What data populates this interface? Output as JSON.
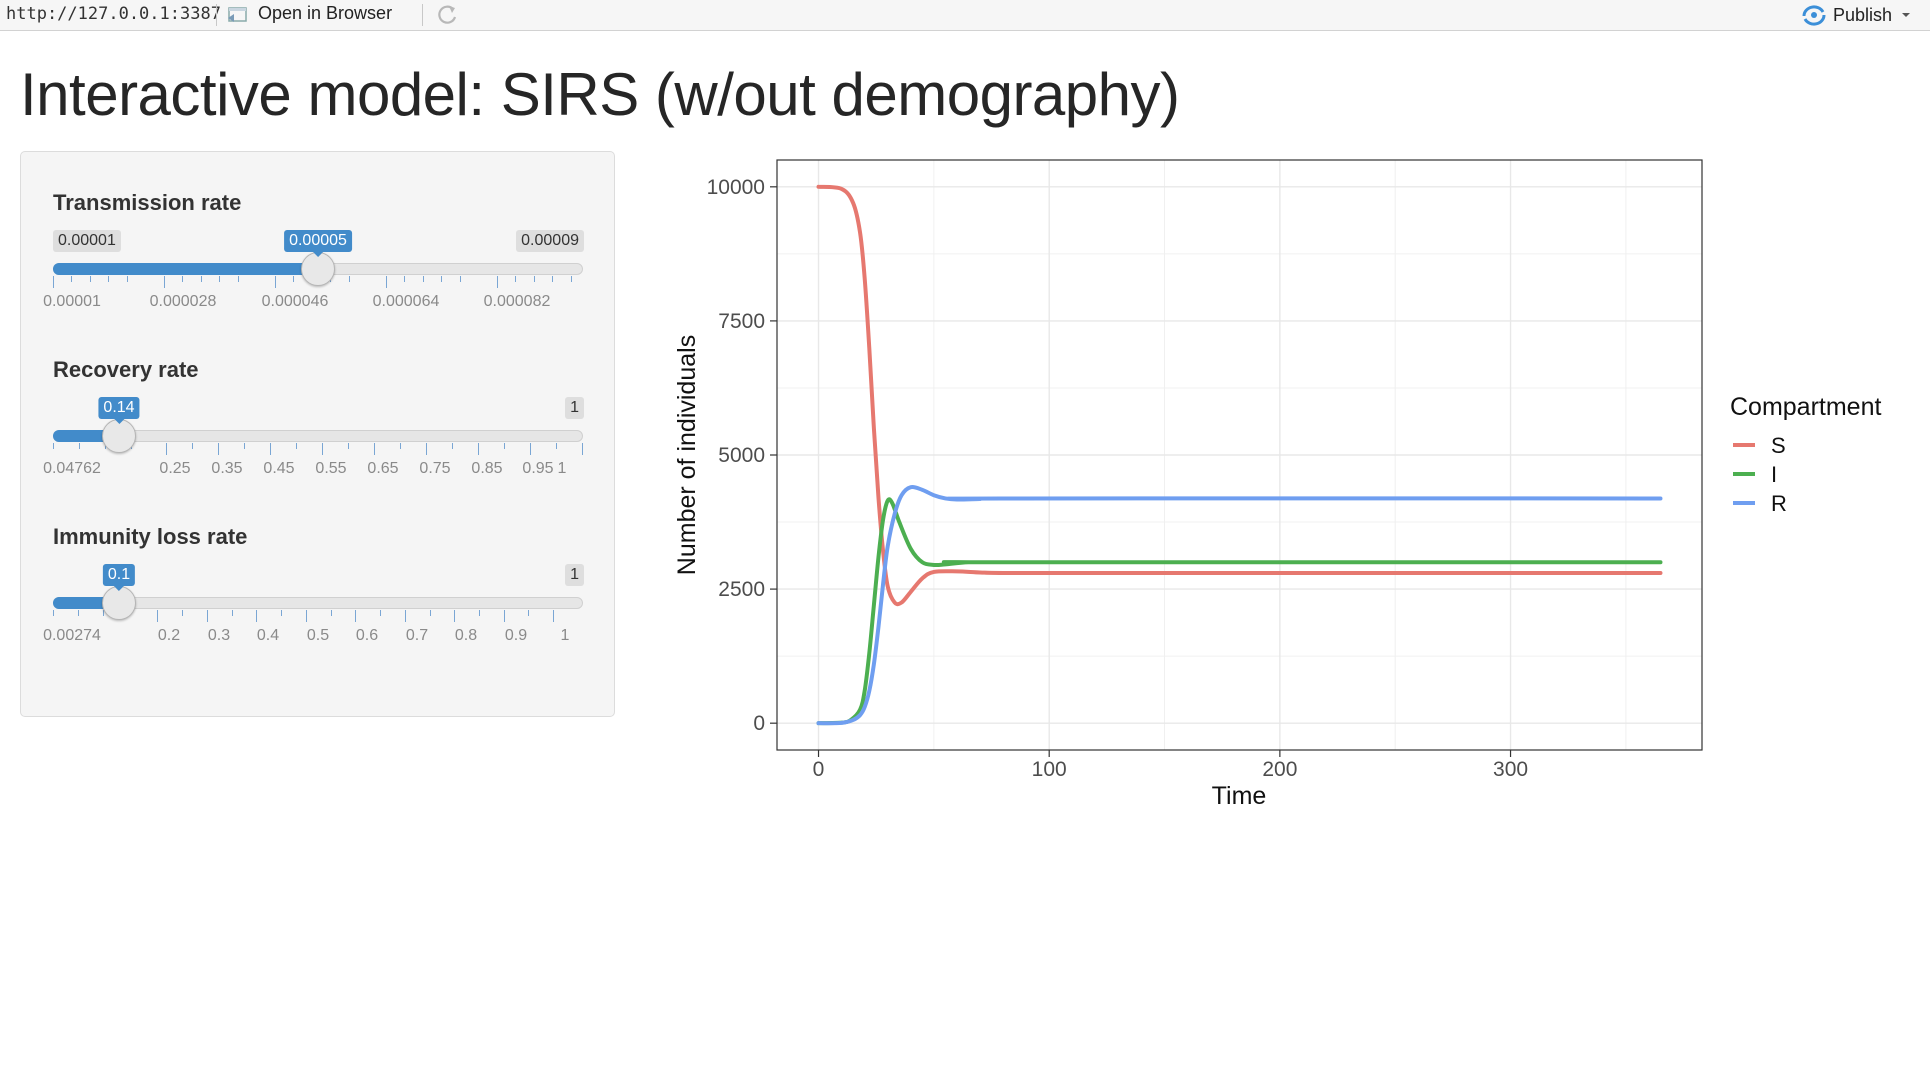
{
  "toolbar": {
    "url": "http://127.0.0.1:3387",
    "open_in_browser": "Open in Browser",
    "publish": "Publish"
  },
  "page_title": "Interactive model: SIRS (w/out demography)",
  "sliders": [
    {
      "label": "Transmission rate",
      "min": 1e-05,
      "max": 9e-05,
      "value": 5e-05,
      "min_label": "0.00001",
      "max_label": "0.00009",
      "value_label": "0.00005",
      "tick_labels": [
        "0.00001",
        "0.000028",
        "0.000046",
        "0.000064",
        "0.000082"
      ]
    },
    {
      "label": "Recovery rate",
      "min": 0.04762,
      "max": 1,
      "value": 0.14,
      "min_label": "",
      "max_label": "1",
      "value_label": "0.14",
      "tick_labels": [
        "0.04762",
        "0.25",
        "0.35",
        "0.45",
        "0.55",
        "0.65",
        "0.75",
        "0.85",
        "0.95",
        "1"
      ]
    },
    {
      "label": "Immunity loss rate",
      "min": 0.00274,
      "max": 1,
      "value": 0.1,
      "min_label": "",
      "max_label": "1",
      "value_label": "0.1",
      "tick_labels": [
        "0.00274",
        "0.2",
        "0.3",
        "0.4",
        "0.5",
        "0.6",
        "0.7",
        "0.8",
        "0.9",
        "1"
      ]
    }
  ],
  "colors": {
    "S": "#e6786f",
    "I": "#4caf50",
    "R": "#6f9ef0",
    "accent": "#428bca"
  },
  "chart_data": {
    "type": "line",
    "title": "",
    "xlabel": "Time",
    "ylabel": "Number of individuals",
    "xlim": [
      -18,
      383
    ],
    "ylim": [
      -500,
      10500
    ],
    "x_ticks": [
      "0",
      "100",
      "200",
      "300"
    ],
    "y_ticks": [
      "0",
      "2500",
      "5000",
      "7500",
      "10000"
    ],
    "legend_title": "Compartment",
    "legend_position": "right",
    "grid": true,
    "series": [
      {
        "name": "S",
        "points": [
          [
            0,
            10000
          ],
          [
            10,
            9960
          ],
          [
            15,
            9700
          ],
          [
            18,
            9150
          ],
          [
            20,
            8300
          ],
          [
            22,
            7000
          ],
          [
            24,
            5500
          ],
          [
            26,
            4200
          ],
          [
            28,
            3200
          ],
          [
            30,
            2550
          ],
          [
            33,
            2250
          ],
          [
            36,
            2250
          ],
          [
            40,
            2450
          ],
          [
            45,
            2700
          ],
          [
            50,
            2820
          ],
          [
            60,
            2830
          ],
          [
            70,
            2810
          ],
          [
            80,
            2800
          ],
          [
            120,
            2800
          ],
          [
            365,
            2800
          ]
        ]
      },
      {
        "name": "I",
        "points": [
          [
            0,
            0
          ],
          [
            10,
            10
          ],
          [
            14,
            60
          ],
          [
            18,
            250
          ],
          [
            20,
            600
          ],
          [
            22,
            1300
          ],
          [
            24,
            2200
          ],
          [
            26,
            3100
          ],
          [
            28,
            3800
          ],
          [
            30,
            4150
          ],
          [
            32,
            4100
          ],
          [
            35,
            3750
          ],
          [
            40,
            3250
          ],
          [
            45,
            3000
          ],
          [
            50,
            2950
          ],
          [
            55,
            2960
          ],
          [
            65,
            3000
          ],
          [
            80,
            3000
          ],
          [
            365,
            3000
          ]
        ]
      },
      {
        "name": "R",
        "points": [
          [
            0,
            0
          ],
          [
            10,
            5
          ],
          [
            15,
            60
          ],
          [
            18,
            150
          ],
          [
            20,
            300
          ],
          [
            22,
            600
          ],
          [
            24,
            1100
          ],
          [
            26,
            1800
          ],
          [
            28,
            2600
          ],
          [
            30,
            3300
          ],
          [
            33,
            3900
          ],
          [
            36,
            4250
          ],
          [
            40,
            4400
          ],
          [
            45,
            4350
          ],
          [
            50,
            4250
          ],
          [
            55,
            4190
          ],
          [
            60,
            4170
          ],
          [
            70,
            4180
          ],
          [
            80,
            4190
          ],
          [
            365,
            4190
          ]
        ]
      }
    ]
  }
}
